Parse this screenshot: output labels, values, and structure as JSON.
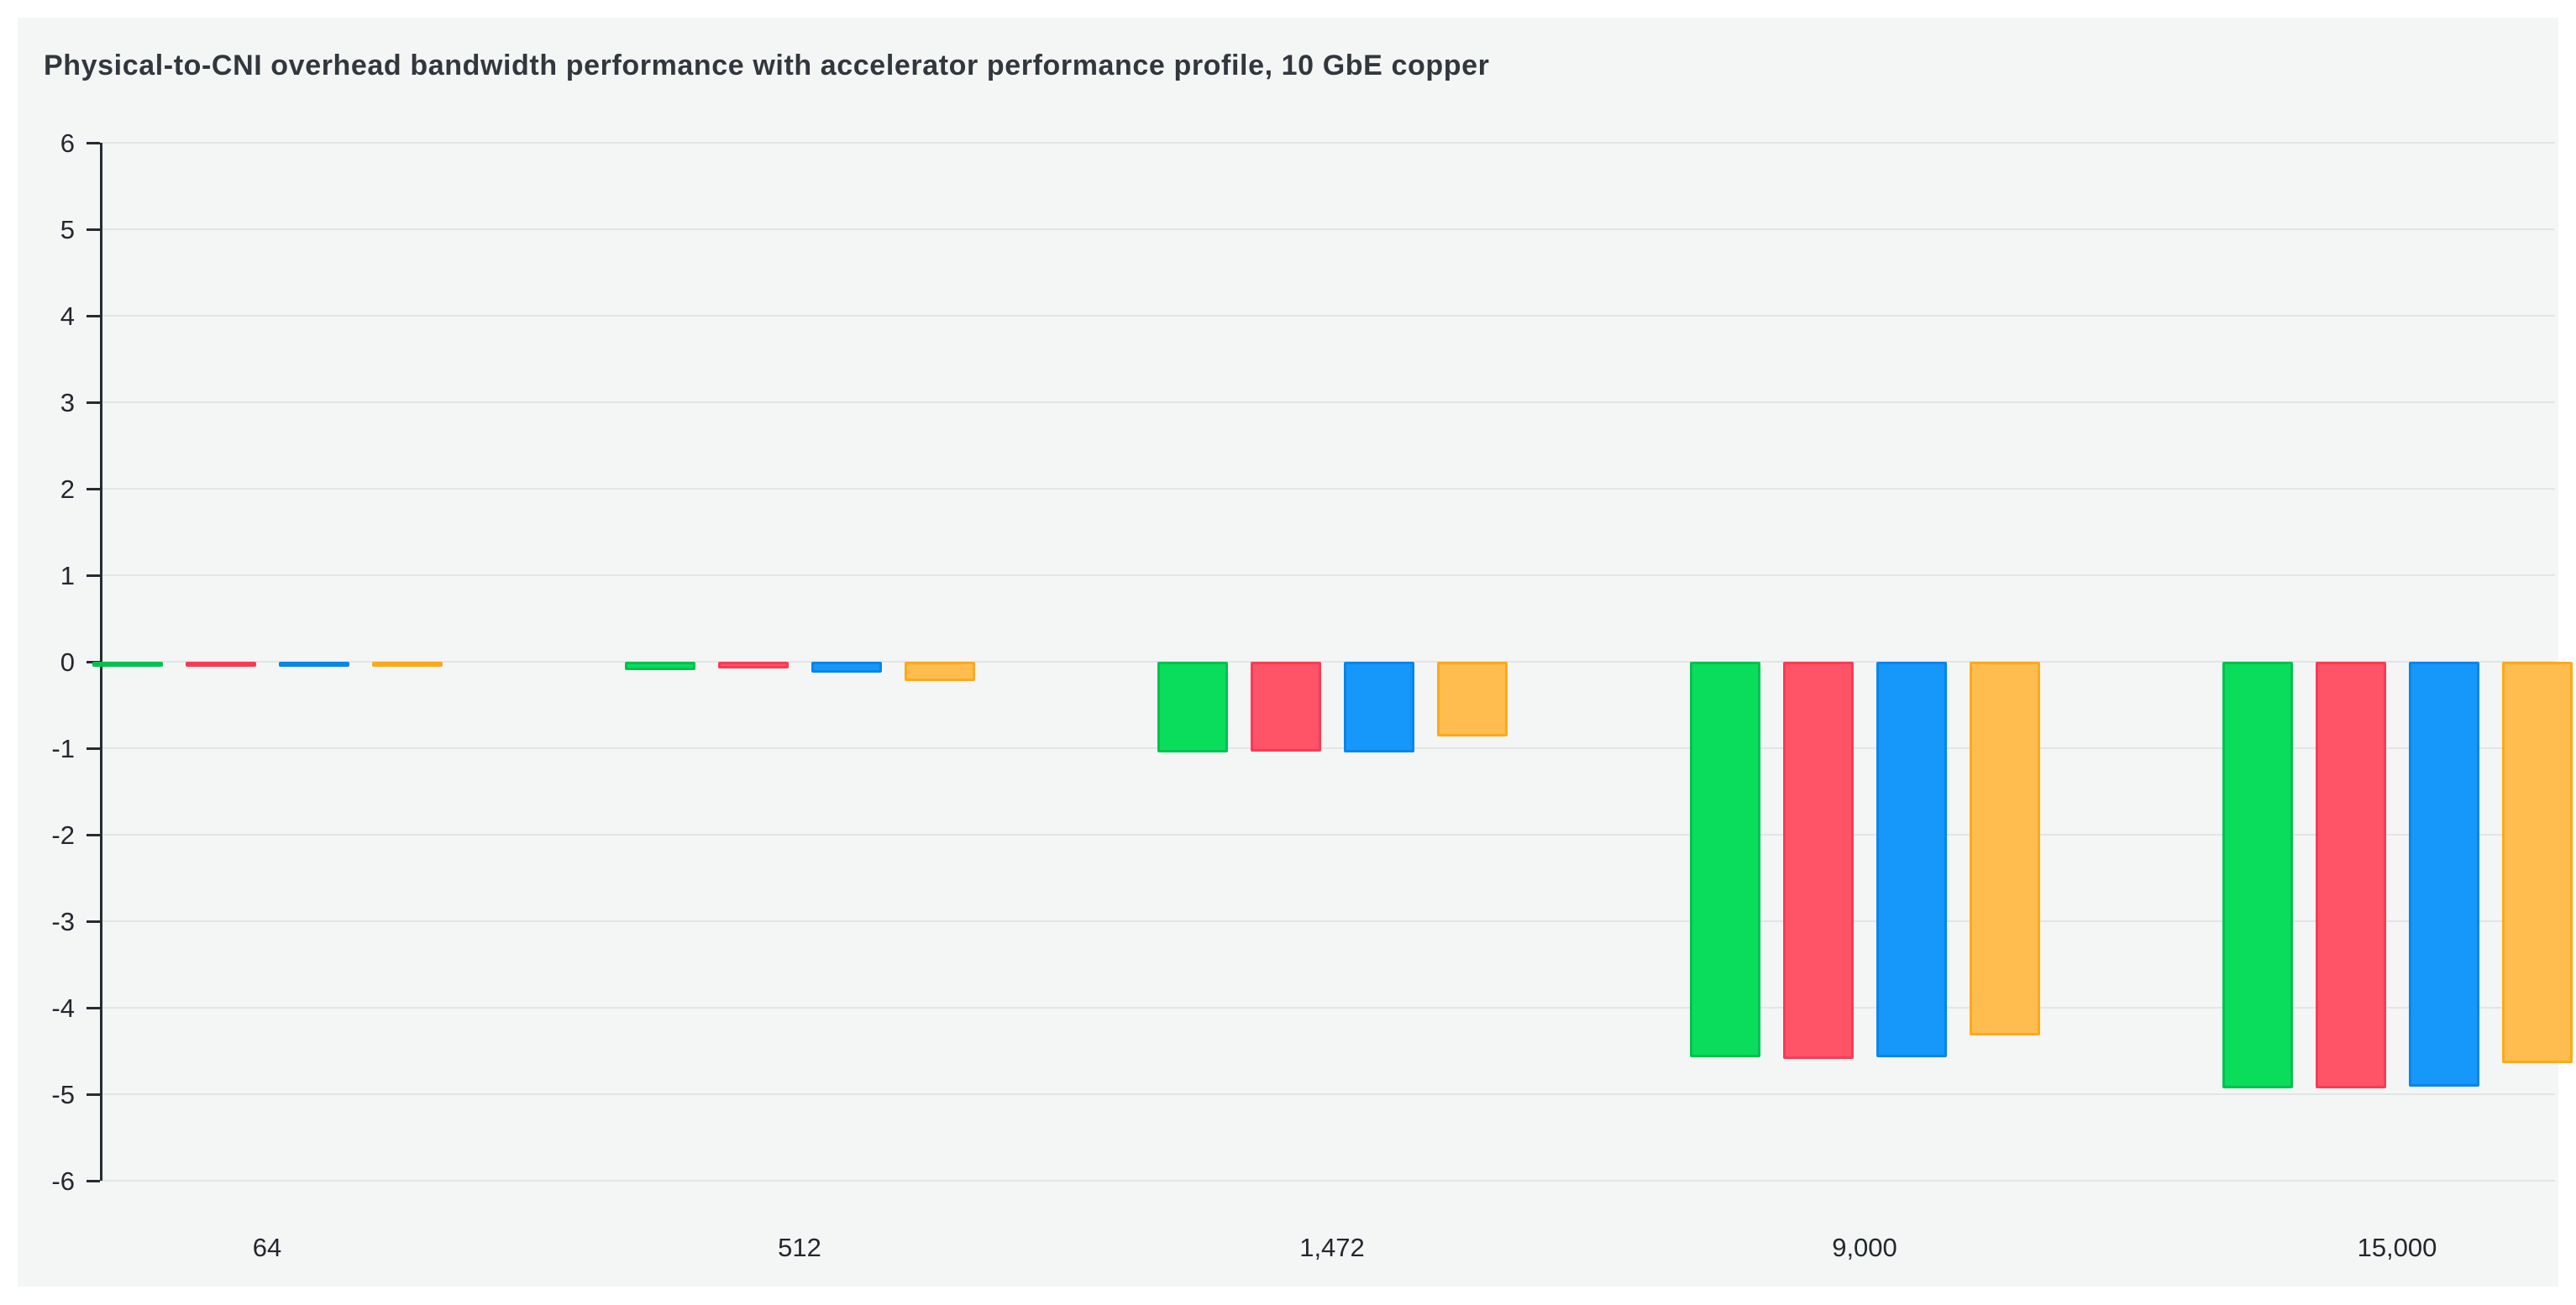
{
  "title": "Physical-to-CNI overhead bandwidth performance with accelerator performance profile, 10 GbE copper",
  "y_axis": {
    "ticks": [
      "6",
      "5",
      "4",
      "3",
      "2",
      "1",
      "0",
      "-1",
      "-2",
      "-3",
      "-4",
      "-5",
      "-6"
    ]
  },
  "x_axis": {
    "labels": [
      "64",
      "512",
      "1,472",
      "9,000",
      "15,000"
    ]
  },
  "chart_data": {
    "type": "bar",
    "title": "Physical-to-CNI overhead bandwidth performance with accelerator performance profile, 10 GbE copper",
    "categories": [
      "64",
      "512",
      "1,472",
      "9,000",
      "15,000"
    ],
    "series": [
      {
        "name": "green",
        "color": "#0adc5c",
        "border_color": "#00c24e",
        "values": [
          -0.02,
          -0.1,
          -1.05,
          -4.57,
          -4.93
        ]
      },
      {
        "name": "red",
        "color": "#ff5367",
        "border_color": "#f83b55",
        "values": [
          -0.02,
          -0.08,
          -1.04,
          -4.59,
          -4.93
        ]
      },
      {
        "name": "blue",
        "color": "#1697fa",
        "border_color": "#0685eb",
        "values": [
          -0.03,
          -0.13,
          -1.05,
          -4.57,
          -4.91
        ]
      },
      {
        "name": "orange",
        "color": "#ffbd4f",
        "border_color": "#fca91c",
        "values": [
          -0.03,
          -0.22,
          -0.86,
          -4.32,
          -4.64
        ]
      }
    ],
    "xlabel": "",
    "ylabel": "",
    "ylim": [
      -6,
      6
    ],
    "ytick_step": 1,
    "grid": true,
    "legend_position": "none"
  },
  "colors": {
    "page_bg": "#ffffff",
    "panel_bg": "#f4f5f5",
    "grid": "#e3e4e6",
    "axis": "#262b33",
    "text": "#23272e"
  }
}
